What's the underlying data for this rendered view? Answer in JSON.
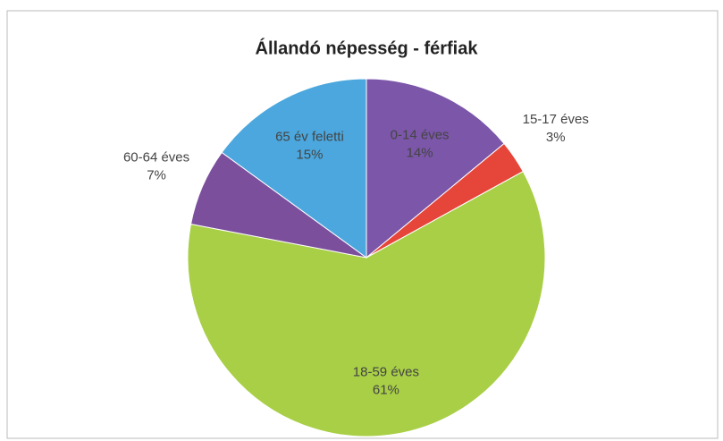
{
  "chart_data": {
    "type": "pie",
    "title": "Állandó népesség - férfiak",
    "categories": [
      "0-14 éves",
      "15-17 éves",
      "18-59 éves",
      "60-64 éves",
      "65 év feletti"
    ],
    "values": [
      14,
      3,
      61,
      7,
      15
    ],
    "value_labels": [
      "14%",
      "3%",
      "61%",
      "7%",
      "15%"
    ],
    "colors": [
      "#7b56a9",
      "#e6453a",
      "#a8cf46",
      "#7c4f9d",
      "#4ba7dd"
    ]
  }
}
